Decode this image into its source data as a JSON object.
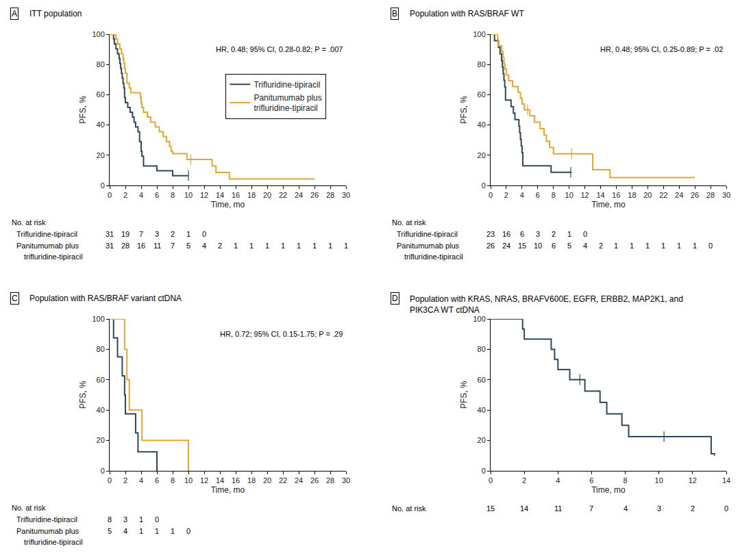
{
  "chart_data": [
    {
      "panel": "A",
      "title": "ITT population",
      "type": "line",
      "line_style": "step",
      "annotation": "HR, 0.48; 95% CI, 0.28-0.82; P = .007",
      "x_label": "Time, mo",
      "y_label": "PFS, %",
      "xlim": [
        0,
        30
      ],
      "xticks": [
        0,
        2,
        4,
        6,
        8,
        10,
        12,
        14,
        16,
        18,
        20,
        22,
        24,
        26,
        28,
        30
      ],
      "ylim": [
        0,
        100
      ],
      "yticks": [
        0,
        20,
        40,
        60,
        80,
        100
      ],
      "grid": false,
      "legend": "upper right",
      "series": [
        {
          "name": "Trifluridine-tipiracil",
          "color": "#2f4858",
          "x": [
            0,
            0.5,
            0.6,
            0.8,
            1.0,
            1.2,
            1.3,
            1.4,
            1.5,
            1.6,
            1.7,
            1.8,
            1.9,
            2.0,
            2.3,
            2.6,
            2.9,
            3.1,
            3.3,
            3.6,
            3.8,
            4.0,
            4.1,
            4.3,
            6.0,
            8.0,
            10.0
          ],
          "values": [
            100,
            96.8,
            93.5,
            90.3,
            87.1,
            83.9,
            80.6,
            77.4,
            74.2,
            71.0,
            67.7,
            64.5,
            58.1,
            54.8,
            51.6,
            48.4,
            45.2,
            41.9,
            38.7,
            35.5,
            29.0,
            22.6,
            19.4,
            12.9,
            9.7,
            6.5,
            6.5
          ],
          "censored_x": [
            10.0
          ],
          "censored_values": [
            6.5
          ]
        },
        {
          "name": "Panitumumab plus\ntrifluridine-tipiracil",
          "color": "#e5a532",
          "x": [
            0,
            0.8,
            1.0,
            1.3,
            1.5,
            1.7,
            1.8,
            1.9,
            2.0,
            2.2,
            2.5,
            2.7,
            3.9,
            4.0,
            4.1,
            4.3,
            4.8,
            5.2,
            5.8,
            6.3,
            6.8,
            7.2,
            7.6,
            7.8,
            8.0,
            9.8,
            13.0,
            13.5,
            15.2,
            26.0
          ],
          "values": [
            100,
            96.8,
            93.5,
            90.3,
            87.1,
            83.9,
            80.6,
            77.4,
            74.2,
            67.7,
            64.5,
            61.3,
            58.1,
            54.8,
            51.6,
            48.4,
            45.2,
            41.9,
            38.7,
            35.5,
            32.3,
            29.0,
            25.8,
            22.6,
            21.0,
            17.2,
            12.9,
            8.6,
            4.3,
            4.3
          ],
          "censored_x": [
            10.3
          ],
          "censored_values": [
            17.2
          ]
        }
      ],
      "at_risk": {
        "title": "No. at risk",
        "times": [
          0,
          2,
          4,
          6,
          8,
          10,
          12,
          14,
          16,
          18,
          20,
          22,
          24,
          26,
          28,
          30
        ],
        "rows": [
          {
            "name": "Trifluridine-tipiracil",
            "values": [
              31,
              19,
              7,
              3,
              2,
              1,
              0
            ]
          },
          {
            "name": "Panitumumab plus\ntrifluridine-tipiracil",
            "values": [
              31,
              28,
              16,
              11,
              7,
              5,
              4,
              2,
              1,
              1,
              1,
              1,
              1,
              1,
              1,
              1
            ]
          }
        ]
      }
    },
    {
      "panel": "B",
      "title": "Population with RAS/BRAF WT",
      "type": "line",
      "line_style": "step",
      "annotation": "HR, 0.48; 95% CI, 0.25-0.89; P = .02",
      "x_label": "Time, mo",
      "y_label": "PFS, %",
      "xlim": [
        0,
        30
      ],
      "xticks": [
        0,
        2,
        4,
        6,
        8,
        10,
        12,
        14,
        16,
        18,
        20,
        22,
        24,
        26,
        28,
        30
      ],
      "ylim": [
        0,
        100
      ],
      "yticks": [
        0,
        20,
        40,
        60,
        80,
        100
      ],
      "grid": false,
      "series": [
        {
          "name": "Trifluridine-tipiracil",
          "color": "#2f4858",
          "x": [
            0,
            0.5,
            1.0,
            1.2,
            1.4,
            1.5,
            1.6,
            1.7,
            1.8,
            1.9,
            2.6,
            2.9,
            3.1,
            3.6,
            3.7,
            3.8,
            3.9,
            4.0,
            4.1,
            7.7,
            10.3
          ],
          "values": [
            100,
            95.7,
            91.3,
            87.0,
            82.6,
            78.3,
            73.9,
            69.6,
            65.2,
            56.5,
            52.2,
            47.8,
            43.5,
            39.1,
            34.8,
            30.4,
            26.1,
            21.7,
            13.0,
            8.7,
            8.7
          ],
          "censored_x": [
            10.2
          ],
          "censored_values": [
            8.7
          ]
        },
        {
          "name": "Panitumumab plus\ntrifluridine-tipiracil",
          "color": "#e5a532",
          "x": [
            0,
            0.9,
            1.0,
            1.4,
            1.6,
            1.7,
            1.8,
            2.0,
            2.3,
            2.8,
            3.5,
            3.8,
            4.0,
            4.3,
            5.0,
            5.6,
            6.3,
            6.8,
            7.1,
            7.5,
            8.0,
            13.0,
            15.2,
            26.0
          ],
          "values": [
            100,
            96.2,
            92.3,
            88.5,
            84.6,
            80.8,
            76.9,
            73.1,
            69.2,
            65.4,
            61.5,
            57.7,
            53.8,
            50.0,
            46.0,
            41.8,
            37.6,
            33.4,
            29.2,
            25.1,
            20.9,
            10.4,
            5.2,
            5.2
          ],
          "censored_x": [
            4.7,
            10.3
          ],
          "censored_values": [
            50.0,
            20.9
          ]
        }
      ],
      "at_risk": {
        "title": "No. at risk",
        "times": [
          0,
          2,
          4,
          6,
          8,
          10,
          12,
          14,
          16,
          18,
          20,
          22,
          24,
          26,
          28,
          30
        ],
        "rows": [
          {
            "name": "Trifluridine-tipiracil",
            "values": [
              23,
              16,
              6,
              3,
              2,
              1,
              0
            ]
          },
          {
            "name": "Panitumumab plus\ntrifluridine-tipiracil",
            "values": [
              26,
              24,
              15,
              10,
              6,
              5,
              4,
              2,
              1,
              1,
              1,
              1,
              1,
              1,
              0
            ]
          }
        ]
      }
    },
    {
      "panel": "C",
      "title": "Population with RAS/BRAF variant ctDNA",
      "type": "line",
      "line_style": "step",
      "annotation": "HR, 0.72; 95% CI, 0.15-1.75; P = .29",
      "x_label": "Time, mo",
      "y_label": "PFS, %",
      "xlim": [
        0,
        30
      ],
      "xticks": [
        0,
        2,
        4,
        6,
        8,
        10,
        12,
        14,
        16,
        18,
        20,
        22,
        24,
        26,
        28,
        30
      ],
      "ylim": [
        0,
        100
      ],
      "yticks": [
        0,
        20,
        40,
        60,
        80,
        100
      ],
      "grid": false,
      "series": [
        {
          "name": "Trifluridine-tipiracil",
          "color": "#2f4858",
          "x": [
            0,
            0.5,
            1.0,
            1.6,
            1.9,
            2.0,
            3.3,
            3.6,
            6.0
          ],
          "values": [
            100,
            87.5,
            75,
            62.5,
            50,
            37.5,
            25,
            12.5,
            0
          ]
        },
        {
          "name": "Panitumumab plus\ntrifluridine-tipiracil",
          "color": "#e5a532",
          "x": [
            0,
            1.9,
            2.2,
            2.5,
            4.1,
            10.0
          ],
          "values": [
            100,
            80,
            60,
            40,
            20,
            0
          ]
        }
      ],
      "at_risk": {
        "title": "No. at risk",
        "times": [
          0,
          2,
          4,
          6,
          8,
          10
        ],
        "rows": [
          {
            "name": "Trifluridine-tipiracil",
            "values": [
              8,
              3,
              1,
              0
            ]
          },
          {
            "name": "Panitumumab plus\ntrifluridine-tipiracil",
            "values": [
              5,
              4,
              1,
              1,
              1,
              0
            ]
          }
        ]
      }
    },
    {
      "panel": "D",
      "title": "Population with KRAS, NRAS, BRAFV600E, EGFR, ERBB2, MAP2K1, and\nPIK3CA WT ctDNA",
      "type": "line",
      "line_style": "step",
      "x_label": "Time, mo",
      "y_label": "PFS, %",
      "xlim": [
        0,
        14
      ],
      "xticks": [
        0,
        2,
        4,
        6,
        8,
        10,
        12,
        14
      ],
      "ylim": [
        0,
        100
      ],
      "yticks": [
        0,
        20,
        40,
        60,
        80,
        100
      ],
      "grid": false,
      "series": [
        {
          "color": "#2f4858",
          "x": [
            0,
            1.9,
            2.0,
            3.6,
            3.8,
            4.0,
            4.7,
            5.6,
            6.5,
            6.9,
            7.8,
            8.2,
            13.1,
            13.3
          ],
          "values": [
            100,
            93.3,
            86.7,
            80,
            73.3,
            66.7,
            60,
            52.5,
            45,
            37.5,
            30,
            22.5,
            11.3,
            10.0
          ],
          "censored_x": [
            5.3,
            10.3
          ],
          "censored_values": [
            60,
            22.5
          ]
        }
      ],
      "at_risk": {
        "title": "No. at risk",
        "times": [
          0,
          2,
          4,
          6,
          8,
          10,
          12,
          14
        ],
        "rows": [
          {
            "values": [
              15,
              14,
              11,
              7,
              4,
              3,
              2,
              0
            ]
          }
        ]
      }
    }
  ]
}
